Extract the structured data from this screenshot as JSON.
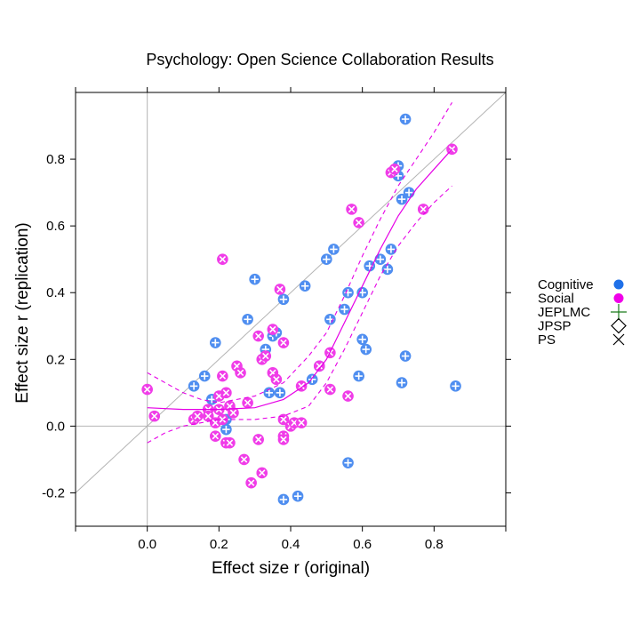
{
  "chart_data": {
    "type": "scatter",
    "title": "Psychology: Open Science Collaboration Results",
    "xlabel": "Effect size r (original)",
    "ylabel": "Effect size r (replication)",
    "xlim": [
      -0.2,
      1.0
    ],
    "ylim": [
      -0.3,
      1.0
    ],
    "x_ticks": [
      0.0,
      0.2,
      0.4,
      0.6,
      0.8
    ],
    "x_tick_labels": [
      "0.0",
      "0.2",
      "0.4",
      "0.6",
      "0.8"
    ],
    "y_ticks": [
      -0.2,
      0.0,
      0.2,
      0.4,
      0.6,
      0.8
    ],
    "y_tick_labels": [
      "-0.2",
      "0.0",
      "0.2",
      "0.4",
      "0.6",
      "0.8"
    ],
    "grid": false,
    "reference_lines": {
      "identity": true,
      "x_zero": true,
      "y_zero": true
    },
    "legend": {
      "placement": "right",
      "entries": [
        {
          "label": "Cognitive",
          "symbol": "filled-circle",
          "color": "#1f70e8"
        },
        {
          "label": "Social",
          "symbol": "filled-circle",
          "color": "#f000e8"
        },
        {
          "label": "JEPLMC",
          "symbol": "plus",
          "color": "#1a7a1a"
        },
        {
          "label": "JPSP",
          "symbol": "diamond",
          "color": "#000000"
        },
        {
          "label": "PS",
          "symbol": "cross",
          "color": "#000000"
        }
      ]
    },
    "colors": {
      "cognitive": "#4f8ef0",
      "social": "#f03ce8",
      "fit": "#e600e6",
      "reference": "#b4b4b4"
    },
    "series": [
      {
        "name": "Cognitive",
        "symbols": "circle-with-plus",
        "points": [
          [
            0.13,
            0.12
          ],
          [
            0.16,
            0.15
          ],
          [
            0.18,
            0.08
          ],
          [
            0.19,
            0.25
          ],
          [
            0.22,
            -0.01
          ],
          [
            0.22,
            0.02
          ],
          [
            0.28,
            0.32
          ],
          [
            0.3,
            0.44
          ],
          [
            0.33,
            0.23
          ],
          [
            0.34,
            0.1
          ],
          [
            0.35,
            0.27
          ],
          [
            0.36,
            0.28
          ],
          [
            0.37,
            0.1
          ],
          [
            0.38,
            0.38
          ],
          [
            0.38,
            -0.22
          ],
          [
            0.42,
            -0.21
          ],
          [
            0.44,
            0.42
          ],
          [
            0.46,
            0.14
          ],
          [
            0.48,
            0.18
          ],
          [
            0.5,
            0.5
          ],
          [
            0.51,
            0.32
          ],
          [
            0.52,
            0.53
          ],
          [
            0.55,
            0.35
          ],
          [
            0.56,
            0.4
          ],
          [
            0.56,
            -0.11
          ],
          [
            0.59,
            0.15
          ],
          [
            0.6,
            0.4
          ],
          [
            0.6,
            0.26
          ],
          [
            0.61,
            0.23
          ],
          [
            0.62,
            0.48
          ],
          [
            0.65,
            0.5
          ],
          [
            0.67,
            0.47
          ],
          [
            0.68,
            0.53
          ],
          [
            0.7,
            0.78
          ],
          [
            0.7,
            0.75
          ],
          [
            0.71,
            0.68
          ],
          [
            0.72,
            0.92
          ],
          [
            0.73,
            0.7
          ],
          [
            0.72,
            0.21
          ],
          [
            0.71,
            0.13
          ],
          [
            0.86,
            0.12
          ]
        ]
      },
      {
        "name": "Social",
        "symbols": "circle-with-cross",
        "points": [
          [
            0.0,
            0.11
          ],
          [
            0.02,
            0.03
          ],
          [
            0.13,
            0.02
          ],
          [
            0.14,
            0.03
          ],
          [
            0.17,
            0.05
          ],
          [
            0.17,
            0.03
          ],
          [
            0.19,
            -0.03
          ],
          [
            0.19,
            0.01
          ],
          [
            0.2,
            0.09
          ],
          [
            0.2,
            0.05
          ],
          [
            0.21,
            0.02
          ],
          [
            0.21,
            0.15
          ],
          [
            0.21,
            0.5
          ],
          [
            0.22,
            -0.05
          ],
          [
            0.22,
            0.1
          ],
          [
            0.23,
            0.06
          ],
          [
            0.23,
            -0.05
          ],
          [
            0.24,
            0.04
          ],
          [
            0.25,
            0.18
          ],
          [
            0.26,
            0.16
          ],
          [
            0.27,
            -0.1
          ],
          [
            0.28,
            0.07
          ],
          [
            0.29,
            -0.17
          ],
          [
            0.31,
            0.27
          ],
          [
            0.31,
            -0.04
          ],
          [
            0.32,
            -0.14
          ],
          [
            0.32,
            0.2
          ],
          [
            0.33,
            0.21
          ],
          [
            0.35,
            0.29
          ],
          [
            0.35,
            0.16
          ],
          [
            0.36,
            0.14
          ],
          [
            0.37,
            0.41
          ],
          [
            0.38,
            0.25
          ],
          [
            0.38,
            0.02
          ],
          [
            0.38,
            -0.03
          ],
          [
            0.38,
            -0.04
          ],
          [
            0.4,
            0.0
          ],
          [
            0.41,
            0.01
          ],
          [
            0.43,
            0.12
          ],
          [
            0.43,
            0.01
          ],
          [
            0.48,
            0.18
          ],
          [
            0.51,
            0.11
          ],
          [
            0.51,
            0.22
          ],
          [
            0.56,
            0.09
          ],
          [
            0.57,
            0.65
          ],
          [
            0.59,
            0.61
          ],
          [
            0.68,
            0.76
          ],
          [
            0.69,
            0.77
          ],
          [
            0.77,
            0.65
          ],
          [
            0.85,
            0.83
          ]
        ]
      }
    ],
    "fit": {
      "name": "",
      "style": "solid",
      "points": [
        [
          0.0,
          0.055
        ],
        [
          0.1,
          0.05
        ],
        [
          0.2,
          0.05
        ],
        [
          0.3,
          0.055
        ],
        [
          0.38,
          0.08
        ],
        [
          0.45,
          0.13
        ],
        [
          0.5,
          0.2
        ],
        [
          0.55,
          0.31
        ],
        [
          0.6,
          0.42
        ],
        [
          0.65,
          0.53
        ],
        [
          0.7,
          0.63
        ],
        [
          0.75,
          0.71
        ],
        [
          0.8,
          0.77
        ],
        [
          0.85,
          0.83
        ]
      ],
      "upper": [
        [
          0.0,
          0.16
        ],
        [
          0.05,
          0.13
        ],
        [
          0.1,
          0.1
        ],
        [
          0.15,
          0.08
        ],
        [
          0.2,
          0.07
        ],
        [
          0.3,
          0.09
        ],
        [
          0.38,
          0.13
        ],
        [
          0.45,
          0.21
        ],
        [
          0.5,
          0.28
        ],
        [
          0.55,
          0.39
        ],
        [
          0.6,
          0.51
        ],
        [
          0.65,
          0.62
        ],
        [
          0.7,
          0.72
        ],
        [
          0.75,
          0.8
        ],
        [
          0.8,
          0.88
        ],
        [
          0.85,
          0.97
        ]
      ],
      "lower": [
        [
          0.0,
          -0.05
        ],
        [
          0.05,
          -0.02
        ],
        [
          0.1,
          0.0
        ],
        [
          0.2,
          0.02
        ],
        [
          0.3,
          0.02
        ],
        [
          0.38,
          0.03
        ],
        [
          0.45,
          0.06
        ],
        [
          0.5,
          0.13
        ],
        [
          0.55,
          0.23
        ],
        [
          0.6,
          0.34
        ],
        [
          0.65,
          0.45
        ],
        [
          0.7,
          0.54
        ],
        [
          0.75,
          0.61
        ],
        [
          0.8,
          0.67
        ],
        [
          0.85,
          0.72
        ]
      ]
    }
  }
}
